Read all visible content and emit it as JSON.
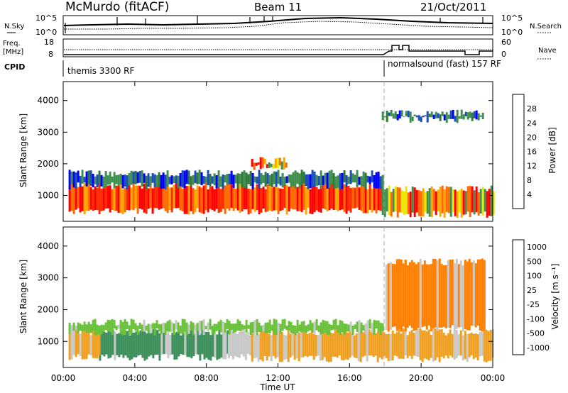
{
  "header": {
    "title": "McMurdo (fitACF)",
    "beam": "Beam 11",
    "date": "21/Oct/2011"
  },
  "noise_panel": {
    "left_label": "N.Sky",
    "left_ticks": [
      "10^5",
      "10^0"
    ],
    "right_label": "N.Search",
    "right_ticks": [
      "10^5",
      "10^0"
    ]
  },
  "freq_panel": {
    "left_label_1": "Freq.",
    "left_label_2": "[MHz]",
    "left_ticks": [
      "18",
      "8"
    ],
    "right_label": "Nave",
    "right_ticks": [
      "60",
      "0"
    ]
  },
  "cpid_panel": {
    "label": "CPID",
    "mode_1": "themis 3300 RF",
    "mode_2": "normalsound (fast) 157 RF"
  },
  "colors": {
    "power_scale": [
      "#0000ff",
      "#1a4fb8",
      "#3f8f4f",
      "#2f7a3a",
      "#e8e800",
      "#ffa500",
      "#ff6a00",
      "#ff0000"
    ],
    "velocity_scale": [
      "#2b3fa0",
      "#3a6fc0",
      "#3d8f5c",
      "#6ac23a",
      "#c8c8c8",
      "#f0a020",
      "#ff7f00",
      "#ff3000",
      "#e00000"
    ]
  },
  "chart_data": [
    {
      "type": "heatmap",
      "name": "power",
      "ylabel": "Slant Range [km]",
      "xlabel": "",
      "ylim": [
        180,
        4600
      ],
      "yticks": [
        "1000",
        "2000",
        "3000",
        "4000"
      ],
      "xlim": [
        0,
        24
      ],
      "xticks": [
        "00:00",
        "04:00",
        "08:00",
        "12:00",
        "16:00",
        "20:00",
        "00:00"
      ],
      "colorbar_label": "Power [dB]",
      "colorbar_ticks": [
        "28",
        "24",
        "20",
        "16",
        "12",
        "8",
        "4"
      ],
      "bands": [
        {
          "t0": 0.3,
          "t1": 17.8,
          "r0": 500,
          "r1": 1300,
          "level": "high"
        },
        {
          "t0": 0.3,
          "t1": 17.8,
          "r0": 1300,
          "r1": 1700,
          "level": "low"
        },
        {
          "t0": 17.8,
          "t1": 24,
          "r0": 400,
          "r1": 1200,
          "level": "mid"
        },
        {
          "t0": 10.5,
          "t1": 12.5,
          "r0": 1900,
          "r1": 2100,
          "level": "mid"
        },
        {
          "t0": 17.8,
          "t1": 23.5,
          "r0": 3400,
          "r1": 3600,
          "level": "low"
        }
      ]
    },
    {
      "type": "heatmap",
      "name": "velocity",
      "ylabel": "Slant Range [km]",
      "xlabel": "Time UT",
      "ylim": [
        180,
        4600
      ],
      "yticks": [
        "1000",
        "2000",
        "3000",
        "4000"
      ],
      "xlim": [
        0,
        24
      ],
      "xticks": [
        "00:00",
        "04:00",
        "08:00",
        "12:00",
        "16:00",
        "20:00",
        "00:00"
      ],
      "colorbar_label": "Velocity [m s⁻¹]",
      "colorbar_ticks": [
        "1000",
        "500",
        "100",
        "25",
        "-25",
        "-100",
        "-500",
        "-1000"
      ],
      "bands": [
        {
          "t0": 2.0,
          "t1": 9.2,
          "r0": 500,
          "r1": 1300,
          "value": "100"
        },
        {
          "t0": 0.3,
          "t1": 2.0,
          "r0": 500,
          "r1": 1300,
          "value": "-100"
        },
        {
          "t0": 9.2,
          "t1": 10.5,
          "r0": 500,
          "r1": 1300,
          "value": "-25"
        },
        {
          "t0": 10.5,
          "t1": 24,
          "r0": 450,
          "r1": 1300,
          "value": "-100"
        },
        {
          "t0": 0.3,
          "t1": 17.8,
          "r0": 1300,
          "r1": 1600,
          "value": "25"
        },
        {
          "t0": 18.0,
          "t1": 23.5,
          "r0": 1400,
          "r1": 3500,
          "value": "-500"
        }
      ]
    }
  ]
}
